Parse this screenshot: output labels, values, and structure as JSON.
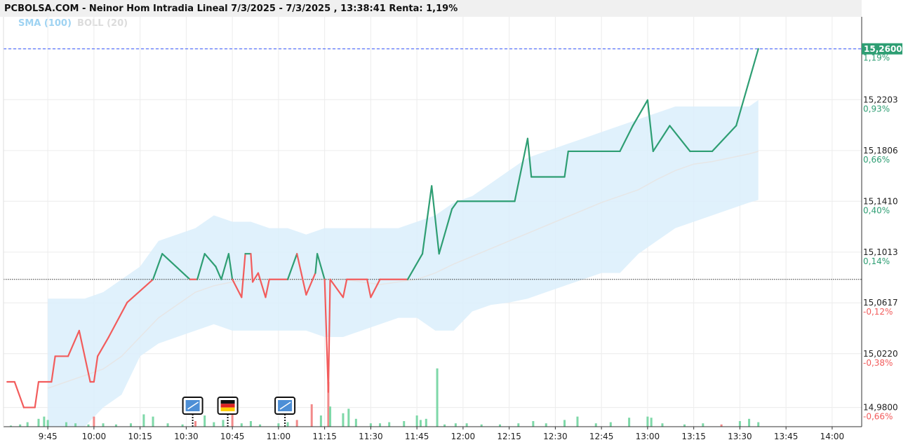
{
  "header": {
    "title": "PCBOLSA.COM - Neinor Hom Intradia Lineal 7/3/2025 - 7/3/2025 , 13:38:41 Renta: 1,19%"
  },
  "legend": {
    "sma": "SMA (100)",
    "boll": "BOLL (20)"
  },
  "colors": {
    "up": "#2e9e73",
    "down": "#f25c5c",
    "band": "#dbeffc",
    "sma": "#e6e6e6",
    "price_line": "#3355ff",
    "vol_up": "#7ed8a8",
    "vol_down": "#f28a8a"
  },
  "chart_data": {
    "type": "line",
    "title": "PCBOLSA.COM - Neinor Hom Intradia Lineal 7/3/2025 - 7/3/2025 , 13:38:41 Renta: 1,19%",
    "reference_price": 15.08,
    "last_price": 15.26,
    "last_price_label": "15,2600",
    "ylim": [
      14.965,
      15.285
    ],
    "y_ticks": [
      {
        "value": 14.98,
        "label": "14,9800",
        "pct": "-0,66%"
      },
      {
        "value": 15.022,
        "label": "15,0220",
        "pct": "-0,38%"
      },
      {
        "value": 15.0617,
        "label": "15,0617",
        "pct": "-0,12%"
      },
      {
        "value": 15.1013,
        "label": "15,1013",
        "pct": "0,14%"
      },
      {
        "value": 15.141,
        "label": "15,1410",
        "pct": "0,40%"
      },
      {
        "value": 15.1806,
        "label": "15,1806",
        "pct": "0,66%"
      },
      {
        "value": 15.2203,
        "label": "15,2203",
        "pct": "0,93%"
      },
      {
        "value": 15.26,
        "label": "15,2600",
        "pct": "1,19%"
      }
    ],
    "x_ticks": [
      "9:45",
      "10:00",
      "10:15",
      "10:30",
      "10:45",
      "11:00",
      "11:15",
      "11:30",
      "11:45",
      "12:00",
      "12:15",
      "12:30",
      "12:45",
      "13:00",
      "13:15",
      "13:30",
      "13:45",
      "14:00"
    ],
    "x_range": [
      9.51,
      14.16
    ],
    "price": [
      [
        9.53,
        15.0
      ],
      [
        9.57,
        15.0
      ],
      [
        9.62,
        14.98
      ],
      [
        9.68,
        14.98
      ],
      [
        9.7,
        15.0
      ],
      [
        9.77,
        15.0
      ],
      [
        9.79,
        15.02
      ],
      [
        9.86,
        15.02
      ],
      [
        9.92,
        15.04
      ],
      [
        9.98,
        15.0
      ],
      [
        10.0,
        15.0
      ],
      [
        10.02,
        15.02
      ],
      [
        10.08,
        15.035
      ],
      [
        10.18,
        15.062
      ],
      [
        10.32,
        15.08
      ],
      [
        10.37,
        15.1
      ],
      [
        10.52,
        15.08
      ],
      [
        10.56,
        15.08
      ],
      [
        10.6,
        15.1
      ],
      [
        10.66,
        15.09
      ],
      [
        10.69,
        15.08
      ],
      [
        10.73,
        15.1
      ],
      [
        10.75,
        15.08
      ],
      [
        10.8,
        15.066
      ],
      [
        10.82,
        15.1
      ],
      [
        10.85,
        15.1
      ],
      [
        10.86,
        15.078
      ],
      [
        10.89,
        15.085
      ],
      [
        10.93,
        15.066
      ],
      [
        10.95,
        15.08
      ],
      [
        11.05,
        15.08
      ],
      [
        11.1,
        15.1
      ],
      [
        11.15,
        15.068
      ],
      [
        11.2,
        15.085
      ],
      [
        11.21,
        15.1
      ],
      [
        11.25,
        15.08
      ],
      [
        11.27,
        14.992
      ],
      [
        11.28,
        15.08
      ],
      [
        11.35,
        15.066
      ],
      [
        11.37,
        15.08
      ],
      [
        11.48,
        15.08
      ],
      [
        11.5,
        15.066
      ],
      [
        11.55,
        15.08
      ],
      [
        11.7,
        15.08
      ],
      [
        11.78,
        15.1
      ],
      [
        11.83,
        15.153
      ],
      [
        11.87,
        15.1
      ],
      [
        11.94,
        15.135
      ],
      [
        11.97,
        15.141
      ],
      [
        12.28,
        15.141
      ],
      [
        12.35,
        15.19
      ],
      [
        12.37,
        15.16
      ],
      [
        12.55,
        15.16
      ],
      [
        12.57,
        15.18
      ],
      [
        12.85,
        15.18
      ],
      [
        12.92,
        15.2
      ],
      [
        13.0,
        15.22
      ],
      [
        13.03,
        15.18
      ],
      [
        13.12,
        15.2
      ],
      [
        13.23,
        15.18
      ],
      [
        13.35,
        15.18
      ],
      [
        13.48,
        15.2
      ],
      [
        13.6,
        15.26
      ]
    ],
    "bollinger_upper": [
      [
        9.75,
        15.065
      ],
      [
        9.85,
        15.065
      ],
      [
        9.95,
        15.065
      ],
      [
        10.05,
        15.07
      ],
      [
        10.15,
        15.08
      ],
      [
        10.25,
        15.09
      ],
      [
        10.35,
        15.11
      ],
      [
        10.45,
        15.115
      ],
      [
        10.55,
        15.12
      ],
      [
        10.65,
        15.13
      ],
      [
        10.75,
        15.125
      ],
      [
        10.85,
        15.125
      ],
      [
        10.95,
        15.12
      ],
      [
        11.05,
        15.12
      ],
      [
        11.15,
        15.115
      ],
      [
        11.25,
        15.12
      ],
      [
        11.35,
        15.12
      ],
      [
        11.45,
        15.12
      ],
      [
        11.55,
        15.12
      ],
      [
        11.65,
        15.12
      ],
      [
        11.75,
        15.125
      ],
      [
        11.85,
        15.13
      ],
      [
        11.95,
        15.14
      ],
      [
        12.05,
        15.145
      ],
      [
        12.15,
        15.155
      ],
      [
        12.25,
        15.165
      ],
      [
        12.35,
        15.175
      ],
      [
        12.45,
        15.18
      ],
      [
        12.55,
        15.185
      ],
      [
        12.65,
        15.19
      ],
      [
        12.75,
        15.195
      ],
      [
        12.85,
        15.2
      ],
      [
        12.95,
        15.205
      ],
      [
        13.05,
        15.21
      ],
      [
        13.15,
        15.215
      ],
      [
        13.25,
        15.215
      ],
      [
        13.35,
        15.215
      ],
      [
        13.45,
        15.215
      ],
      [
        13.55,
        15.215
      ],
      [
        13.6,
        15.22
      ]
    ],
    "bollinger_lower": [
      [
        9.75,
        14.965
      ],
      [
        9.85,
        14.965
      ],
      [
        9.95,
        14.965
      ],
      [
        10.05,
        14.98
      ],
      [
        10.15,
        14.99
      ],
      [
        10.25,
        15.02
      ],
      [
        10.35,
        15.03
      ],
      [
        10.45,
        15.035
      ],
      [
        10.55,
        15.04
      ],
      [
        10.65,
        15.045
      ],
      [
        10.75,
        15.04
      ],
      [
        10.85,
        15.04
      ],
      [
        10.95,
        15.04
      ],
      [
        11.05,
        15.04
      ],
      [
        11.15,
        15.04
      ],
      [
        11.25,
        15.035
      ],
      [
        11.35,
        15.035
      ],
      [
        11.45,
        15.04
      ],
      [
        11.55,
        15.045
      ],
      [
        11.65,
        15.05
      ],
      [
        11.75,
        15.05
      ],
      [
        11.85,
        15.04
      ],
      [
        11.95,
        15.04
      ],
      [
        12.05,
        15.055
      ],
      [
        12.15,
        15.06
      ],
      [
        12.25,
        15.062
      ],
      [
        12.35,
        15.065
      ],
      [
        12.45,
        15.07
      ],
      [
        12.55,
        15.075
      ],
      [
        12.65,
        15.08
      ],
      [
        12.75,
        15.085
      ],
      [
        12.85,
        15.085
      ],
      [
        12.95,
        15.1
      ],
      [
        13.05,
        15.11
      ],
      [
        13.15,
        15.12
      ],
      [
        13.25,
        15.125
      ],
      [
        13.35,
        15.13
      ],
      [
        13.45,
        15.135
      ],
      [
        13.55,
        15.14
      ],
      [
        13.6,
        15.142
      ]
    ],
    "sma": [
      [
        9.75,
        14.995
      ],
      [
        9.85,
        15.0
      ],
      [
        9.95,
        15.005
      ],
      [
        10.05,
        15.01
      ],
      [
        10.15,
        15.02
      ],
      [
        10.25,
        15.035
      ],
      [
        10.35,
        15.05
      ],
      [
        10.45,
        15.06
      ],
      [
        10.55,
        15.07
      ],
      [
        10.65,
        15.075
      ],
      [
        10.75,
        15.078
      ],
      [
        10.85,
        15.08
      ],
      [
        10.95,
        15.08
      ],
      [
        11.05,
        15.08
      ],
      [
        11.15,
        15.08
      ],
      [
        11.25,
        15.08
      ],
      [
        11.35,
        15.08
      ],
      [
        11.45,
        15.078
      ],
      [
        11.55,
        15.076
      ],
      [
        11.65,
        15.078
      ],
      [
        11.75,
        15.08
      ],
      [
        11.85,
        15.085
      ],
      [
        11.95,
        15.092
      ],
      [
        12.05,
        15.098
      ],
      [
        12.15,
        15.104
      ],
      [
        12.25,
        15.11
      ],
      [
        12.35,
        15.116
      ],
      [
        12.45,
        15.122
      ],
      [
        12.55,
        15.128
      ],
      [
        12.65,
        15.134
      ],
      [
        12.75,
        15.14
      ],
      [
        12.85,
        15.145
      ],
      [
        12.95,
        15.15
      ],
      [
        13.05,
        15.158
      ],
      [
        13.15,
        15.165
      ],
      [
        13.25,
        15.17
      ],
      [
        13.35,
        15.172
      ],
      [
        13.45,
        15.175
      ],
      [
        13.55,
        15.178
      ],
      [
        13.6,
        15.18
      ]
    ],
    "volume": [
      [
        9.55,
        1,
        "u"
      ],
      [
        9.6,
        2,
        "u"
      ],
      [
        9.64,
        4,
        "u"
      ],
      [
        9.7,
        7,
        "u"
      ],
      [
        9.73,
        9,
        "u"
      ],
      [
        9.75,
        6,
        "u"
      ],
      [
        9.85,
        4,
        "u"
      ],
      [
        9.9,
        3,
        "u"
      ],
      [
        9.97,
        2,
        "u"
      ],
      [
        10.0,
        9,
        "d"
      ],
      [
        10.05,
        3,
        "u"
      ],
      [
        10.12,
        2,
        "u"
      ],
      [
        10.2,
        3,
        "u"
      ],
      [
        10.27,
        11,
        "u"
      ],
      [
        10.32,
        9,
        "u"
      ],
      [
        10.4,
        3,
        "u"
      ],
      [
        10.48,
        2,
        "u"
      ],
      [
        10.55,
        5,
        "d"
      ],
      [
        10.6,
        10,
        "u"
      ],
      [
        10.65,
        4,
        "u"
      ],
      [
        10.7,
        6,
        "u"
      ],
      [
        10.75,
        14,
        "d"
      ],
      [
        10.8,
        3,
        "u"
      ],
      [
        10.85,
        5,
        "u"
      ],
      [
        10.9,
        2,
        "u"
      ],
      [
        11.0,
        3,
        "u"
      ],
      [
        11.05,
        4,
        "u"
      ],
      [
        11.1,
        6,
        "d"
      ],
      [
        11.18,
        20,
        "d"
      ],
      [
        11.23,
        10,
        "u"
      ],
      [
        11.27,
        40,
        "d"
      ],
      [
        11.28,
        18,
        "u"
      ],
      [
        11.35,
        12,
        "u"
      ],
      [
        11.38,
        16,
        "u"
      ],
      [
        11.42,
        7,
        "u"
      ],
      [
        11.5,
        3,
        "u"
      ],
      [
        11.55,
        3,
        "u"
      ],
      [
        11.6,
        4,
        "u"
      ],
      [
        11.68,
        5,
        "u"
      ],
      [
        11.75,
        10,
        "u"
      ],
      [
        11.77,
        6,
        "u"
      ],
      [
        11.8,
        7,
        "u"
      ],
      [
        11.86,
        52,
        "u"
      ],
      [
        11.9,
        2,
        "u"
      ],
      [
        11.96,
        3,
        "u"
      ],
      [
        12.02,
        3,
        "u"
      ],
      [
        12.1,
        2,
        "u"
      ],
      [
        12.2,
        2,
        "u"
      ],
      [
        12.3,
        3,
        "u"
      ],
      [
        12.38,
        5,
        "u"
      ],
      [
        12.45,
        3,
        "u"
      ],
      [
        12.55,
        6,
        "u"
      ],
      [
        12.62,
        9,
        "u"
      ],
      [
        12.72,
        3,
        "u"
      ],
      [
        12.8,
        4,
        "u"
      ],
      [
        12.9,
        8,
        "u"
      ],
      [
        13.0,
        9,
        "u"
      ],
      [
        13.02,
        8,
        "u"
      ],
      [
        13.08,
        3,
        "u"
      ],
      [
        13.2,
        2,
        "u"
      ],
      [
        13.3,
        3,
        "u"
      ],
      [
        13.4,
        2,
        "d"
      ],
      [
        13.5,
        5,
        "u"
      ],
      [
        13.55,
        7,
        "u"
      ],
      [
        13.6,
        4,
        "u"
      ]
    ],
    "news_markers": [
      {
        "x": 10.535,
        "icon": "news-icon"
      },
      {
        "x": 10.725,
        "icon": "flag-germany-icon"
      },
      {
        "x": 11.035,
        "icon": "news-icon"
      }
    ]
  }
}
